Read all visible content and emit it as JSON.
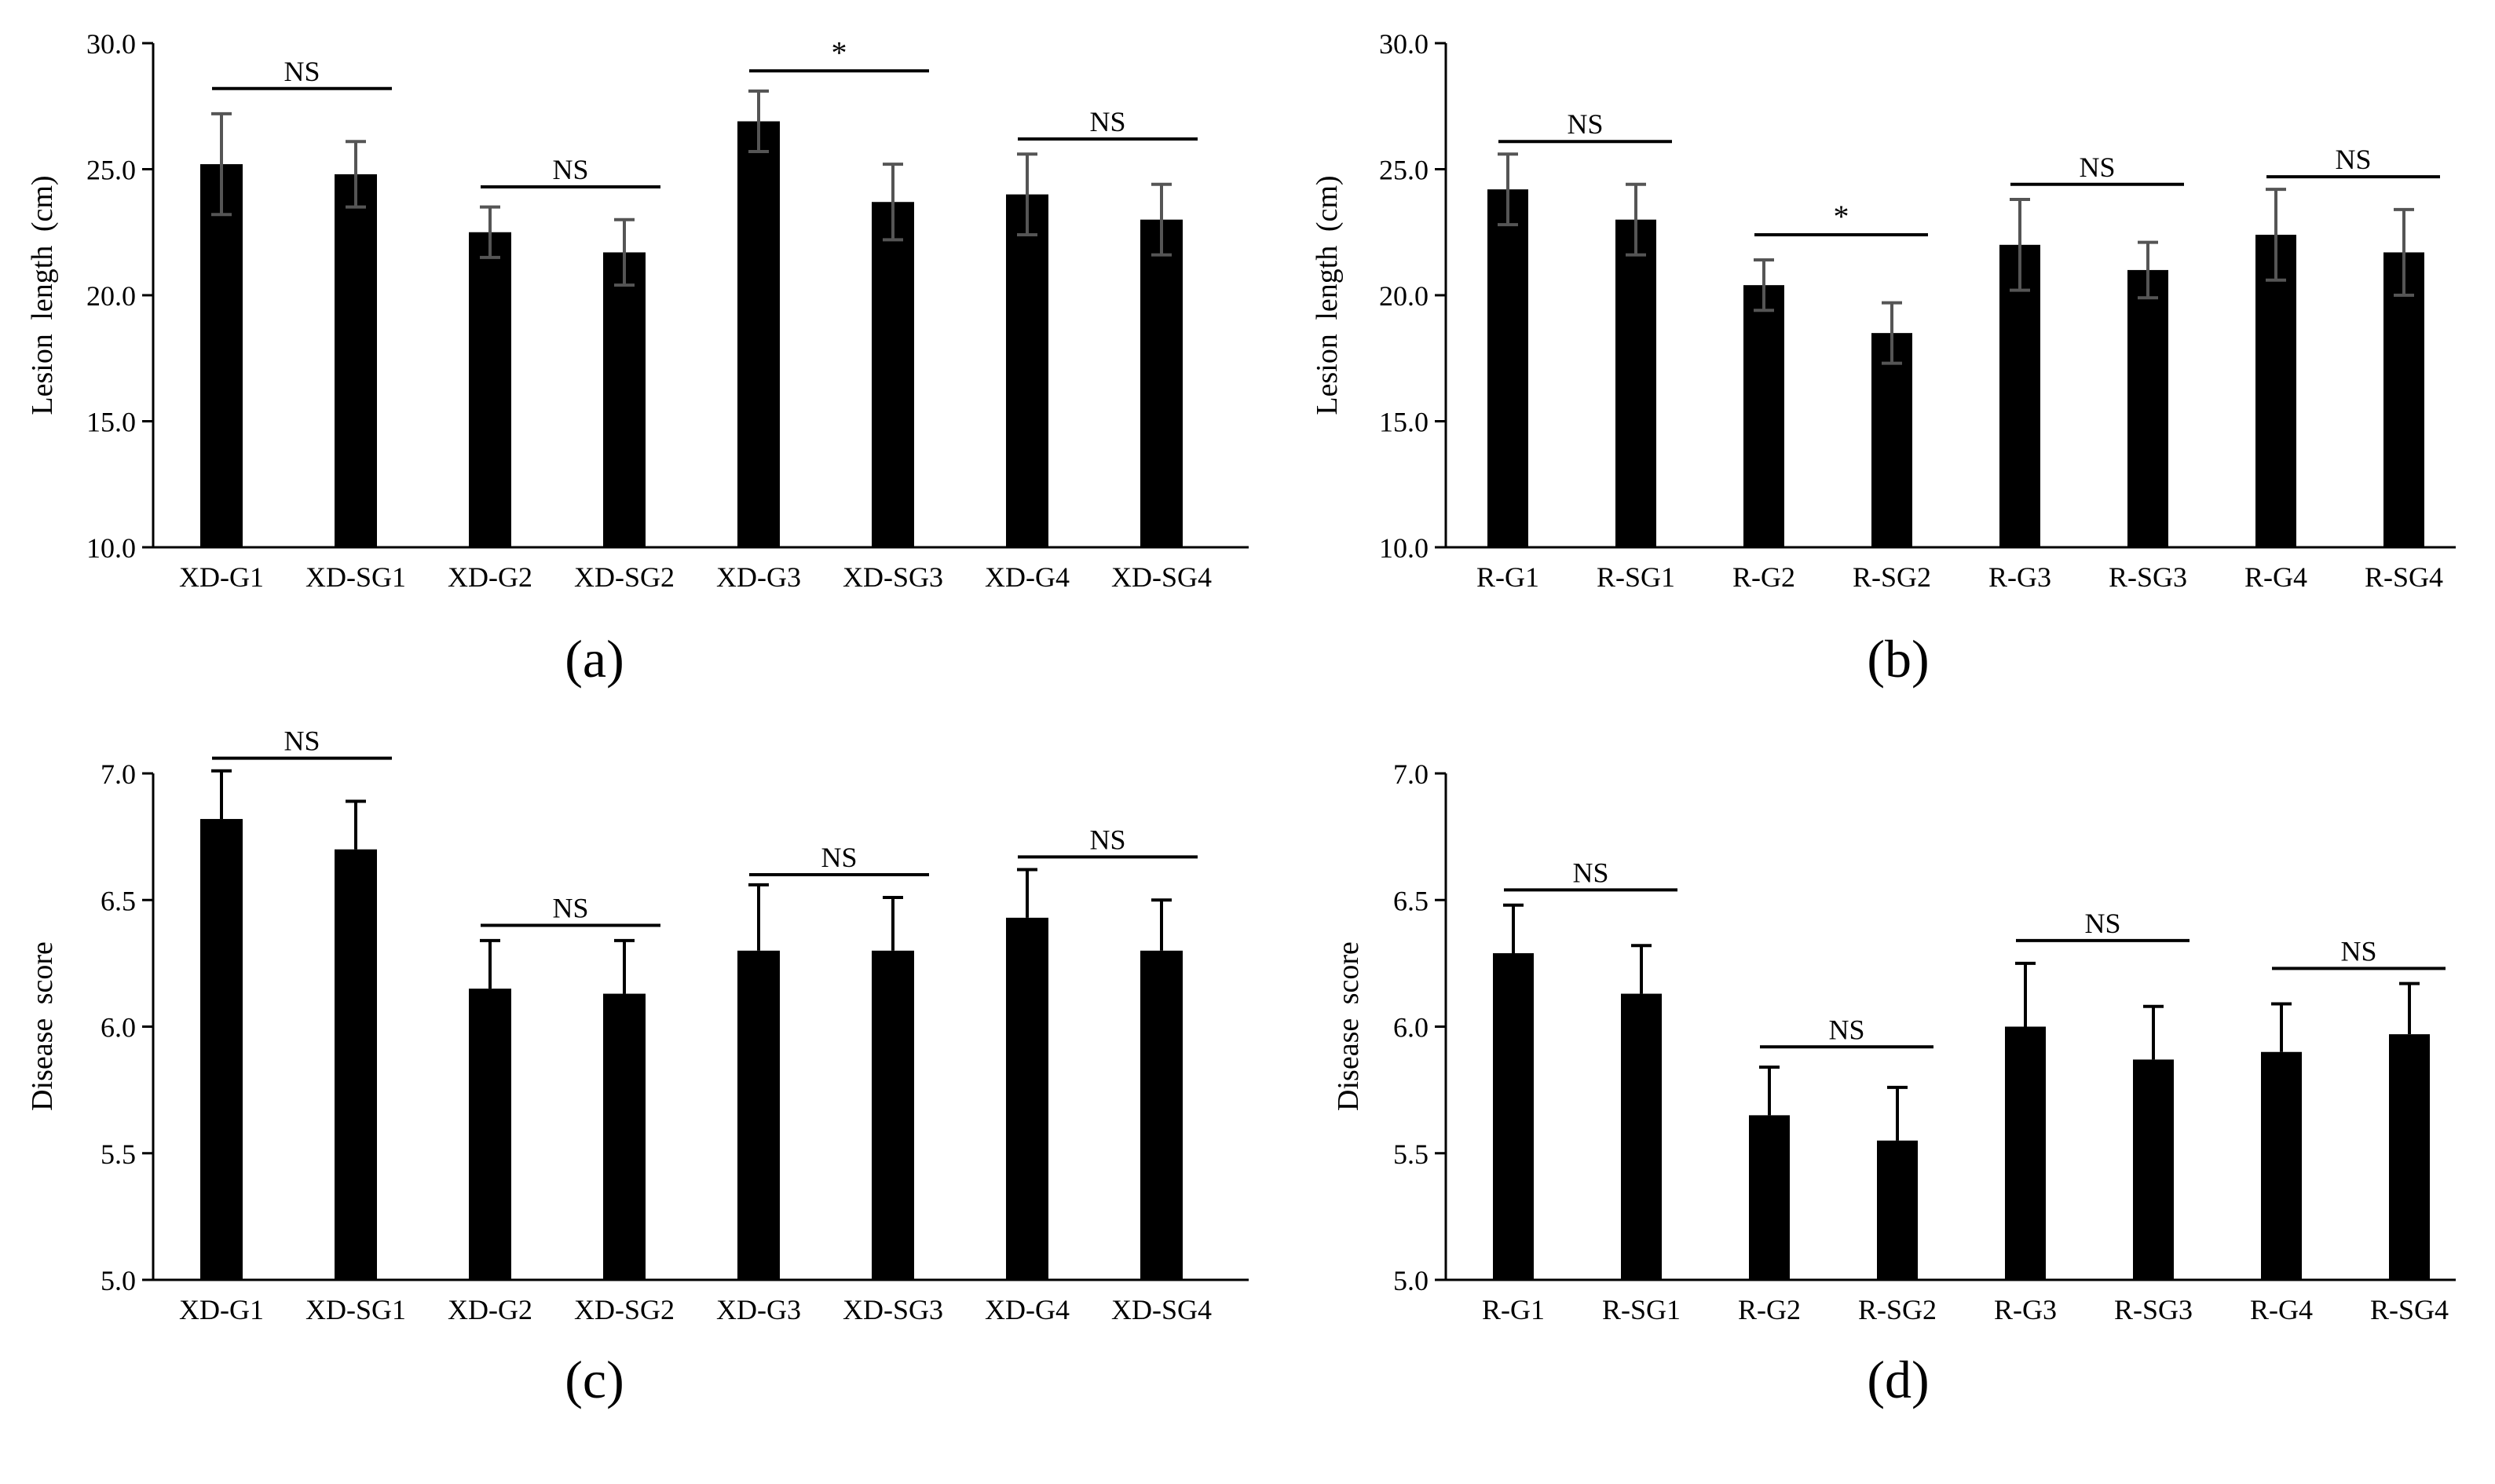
{
  "chart_data": [
    {
      "type": "bar",
      "panel": "a",
      "panel_label": "(a)",
      "title": "",
      "xlabel": "",
      "ylabel": "Lesion length (cm)",
      "ylim": [
        10.0,
        30.0
      ],
      "yticks": [
        10.0,
        15.0,
        20.0,
        25.0,
        30.0
      ],
      "ytick_labels": [
        "10.0",
        "15.0",
        "20.0",
        "25.0",
        "30.0"
      ],
      "categories": [
        "XD-G1",
        "XD-SG1",
        "XD-G2",
        "XD-SG2",
        "XD-G3",
        "XD-SG3",
        "XD-G4",
        "XD-SG4"
      ],
      "values": [
        25.2,
        24.8,
        22.5,
        21.7,
        26.9,
        23.7,
        24.0,
        23.0
      ],
      "errors": [
        2.0,
        1.3,
        1.0,
        1.3,
        1.2,
        1.5,
        1.6,
        1.4
      ],
      "error_style": "both",
      "bar_color": "#000000",
      "error_color": "#555555",
      "significance": [
        {
          "from": 0,
          "to": 1,
          "label": "NS",
          "y": 28.2
        },
        {
          "from": 2,
          "to": 3,
          "label": "NS",
          "y": 24.3
        },
        {
          "from": 4,
          "to": 5,
          "label": "*",
          "y": 28.9
        },
        {
          "from": 6,
          "to": 7,
          "label": "NS",
          "y": 26.2
        }
      ]
    },
    {
      "type": "bar",
      "panel": "b",
      "panel_label": "(b)",
      "title": "",
      "xlabel": "",
      "ylabel": "Lesion length (cm)",
      "ylim": [
        10.0,
        30.0
      ],
      "yticks": [
        10.0,
        15.0,
        20.0,
        25.0,
        30.0
      ],
      "ytick_labels": [
        "10.0",
        "15.0",
        "20.0",
        "25.0",
        "30.0"
      ],
      "categories": [
        "R-G1",
        "R-SG1",
        "R-G2",
        "R-SG2",
        "R-G3",
        "R-SG3",
        "R-G4",
        "R-SG4"
      ],
      "values": [
        24.2,
        23.0,
        20.4,
        18.5,
        22.0,
        21.0,
        22.4,
        21.7
      ],
      "errors": [
        1.4,
        1.4,
        1.0,
        1.2,
        1.8,
        1.1,
        1.8,
        1.7
      ],
      "error_style": "both",
      "bar_color": "#000000",
      "error_color": "#555555",
      "significance": [
        {
          "from": 0,
          "to": 1,
          "label": "NS",
          "y": 26.1
        },
        {
          "from": 2,
          "to": 3,
          "label": "*",
          "y": 22.4
        },
        {
          "from": 4,
          "to": 5,
          "label": "NS",
          "y": 24.4
        },
        {
          "from": 6,
          "to": 7,
          "label": "NS",
          "y": 24.7
        }
      ]
    },
    {
      "type": "bar",
      "panel": "c",
      "panel_label": "(c)",
      "title": "",
      "xlabel": "",
      "ylabel": "Disease score",
      "ylim": [
        5.0,
        7.0
      ],
      "yticks": [
        5.0,
        5.5,
        6.0,
        6.5,
        7.0
      ],
      "ytick_labels": [
        "5.0",
        "5.5",
        "6.0",
        "6.5",
        "7.0"
      ],
      "categories": [
        "XD-G1",
        "XD-SG1",
        "XD-G2",
        "XD-SG2",
        "XD-G3",
        "XD-SG3",
        "XD-G4",
        "XD-SG4"
      ],
      "values": [
        6.82,
        6.7,
        6.15,
        6.13,
        6.3,
        6.3,
        6.43,
        6.3
      ],
      "errors": [
        0.19,
        0.19,
        0.19,
        0.21,
        0.26,
        0.21,
        0.19,
        0.2
      ],
      "error_style": "upper",
      "bar_color": "#000000",
      "error_color": "#000000",
      "significance": [
        {
          "from": 0,
          "to": 1,
          "label": "NS",
          "y": 7.06
        },
        {
          "from": 2,
          "to": 3,
          "label": "NS",
          "y": 6.4
        },
        {
          "from": 4,
          "to": 5,
          "label": "NS",
          "y": 6.6
        },
        {
          "from": 6,
          "to": 7,
          "label": "NS",
          "y": 6.67
        }
      ]
    },
    {
      "type": "bar",
      "panel": "d",
      "panel_label": "(d)",
      "title": "",
      "xlabel": "",
      "ylabel": "Disease score",
      "ylim": [
        5.0,
        7.0
      ],
      "yticks": [
        5.0,
        5.5,
        6.0,
        6.5,
        7.0
      ],
      "ytick_labels": [
        "5.0",
        "5.5",
        "6.0",
        "6.5",
        "7.0"
      ],
      "categories": [
        "R-G1",
        "R-SG1",
        "R-G2",
        "R-SG2",
        "R-G3",
        "R-SG3",
        "R-G4",
        "R-SG4"
      ],
      "values": [
        6.29,
        6.13,
        5.65,
        5.55,
        6.0,
        5.87,
        5.9,
        5.97
      ],
      "errors": [
        0.19,
        0.19,
        0.19,
        0.21,
        0.25,
        0.21,
        0.19,
        0.2
      ],
      "error_style": "upper",
      "bar_color": "#000000",
      "error_color": "#000000",
      "significance": [
        {
          "from": 0,
          "to": 1,
          "label": "NS",
          "y": 6.54
        },
        {
          "from": 2,
          "to": 3,
          "label": "NS",
          "y": 5.92
        },
        {
          "from": 4,
          "to": 5,
          "label": "NS",
          "y": 6.34
        },
        {
          "from": 6,
          "to": 7,
          "label": "NS",
          "y": 6.23
        }
      ]
    }
  ]
}
